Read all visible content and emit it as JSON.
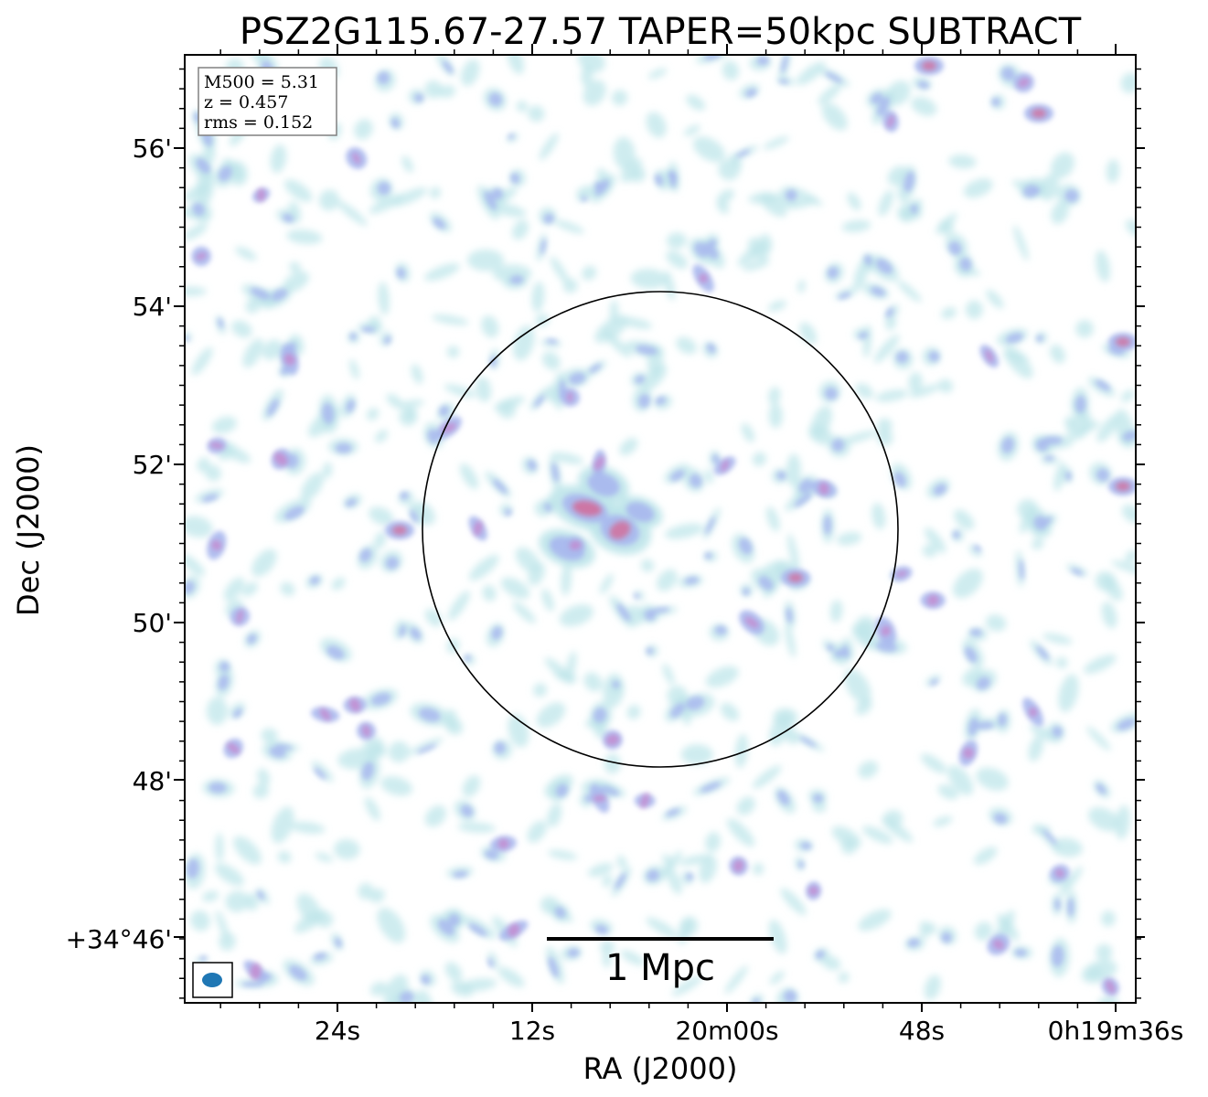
{
  "title": "PSZ2G115.67-27.57 TAPER=50kpc SUBTRACT",
  "info": {
    "line1": "M500 = 5.31",
    "line2": "z = 0.457",
    "line3": "rms = 0.152"
  },
  "axes": {
    "xlabel": "RA (J2000)",
    "ylabel": "Dec (J2000)",
    "x_ticks": [
      "24s",
      "12s",
      "20m00s",
      "48s",
      "0h19m36s"
    ],
    "y_ticks": [
      "56'",
      "54'",
      "52'",
      "50'",
      "48'",
      "+34°46'"
    ]
  },
  "scalebar": {
    "label": "1 Mpc"
  },
  "colors": {
    "frame": "#000000",
    "low_emission": "#bfe6ea",
    "mid_emission": "#a9b8ee",
    "high_emission": "#d46a96",
    "beam": "#1f77b4"
  },
  "image": {
    "type": "radio continuum map",
    "colormap": "cyan-blue-magenta on white",
    "region_circle": true
  }
}
